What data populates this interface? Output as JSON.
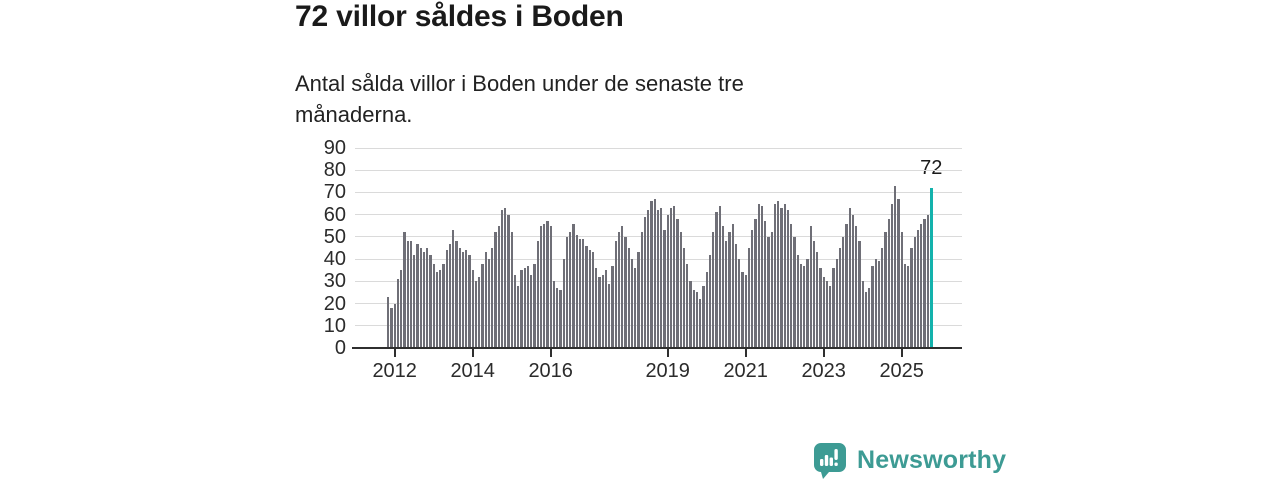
{
  "header": {
    "title": "72 villor såldes i Boden",
    "subtitle": "Antal sålda villor i Boden under de senaste tre månaderna."
  },
  "chart_data": {
    "type": "bar",
    "title": "72 villor såldes i Boden",
    "xlabel": "",
    "ylabel": "",
    "ylim": [
      0,
      90
    ],
    "y_ticks": [
      0,
      10,
      20,
      30,
      40,
      50,
      60,
      70,
      80,
      90
    ],
    "x_tick_years": [
      2012,
      2014,
      2016,
      2019,
      2021,
      2023,
      2025
    ],
    "grid": true,
    "start": {
      "year": 2011,
      "month": 11
    },
    "bar_color": "#6f6f77",
    "values": [
      23,
      18,
      20,
      31,
      35,
      52,
      48,
      48,
      42,
      47,
      45,
      43,
      45,
      42,
      38,
      34,
      35,
      38,
      44,
      47,
      53,
      48,
      45,
      43,
      44,
      42,
      35,
      30,
      32,
      38,
      43,
      40,
      45,
      52,
      55,
      62,
      63,
      60,
      52,
      33,
      28,
      35,
      36,
      37,
      33,
      38,
      48,
      55,
      56,
      57,
      55,
      30,
      27,
      26,
      40,
      50,
      52,
      56,
      51,
      49,
      49,
      46,
      44,
      43,
      36,
      32,
      33,
      35,
      29,
      37,
      48,
      52,
      55,
      50,
      45,
      40,
      36,
      43,
      52,
      59,
      62,
      66,
      67,
      62,
      63,
      53,
      60,
      63,
      64,
      58,
      52,
      45,
      38,
      30,
      26,
      25,
      22,
      28,
      34,
      42,
      52,
      61,
      64,
      55,
      48,
      52,
      56,
      47,
      40,
      34,
      33,
      45,
      53,
      58,
      65,
      64,
      57,
      50,
      52,
      65,
      66,
      63,
      65,
      62,
      56,
      50,
      42,
      38,
      37,
      40,
      55,
      48,
      43,
      36,
      32,
      30,
      28,
      36,
      40,
      45,
      50,
      56,
      63,
      60,
      55,
      48,
      30,
      25,
      27,
      37,
      40,
      39,
      45,
      52,
      58,
      65,
      73,
      67,
      52,
      38,
      37,
      45,
      50,
      53,
      56,
      58,
      60,
      72
    ],
    "highlight": {
      "position": "last",
      "value": 72,
      "label": "72",
      "color": "#13b2ac"
    }
  },
  "footer": {
    "brand": "Newsworthy",
    "brand_color": "#3d9b94",
    "logo_icon": "bar-chart-speech-bubble-icon"
  }
}
